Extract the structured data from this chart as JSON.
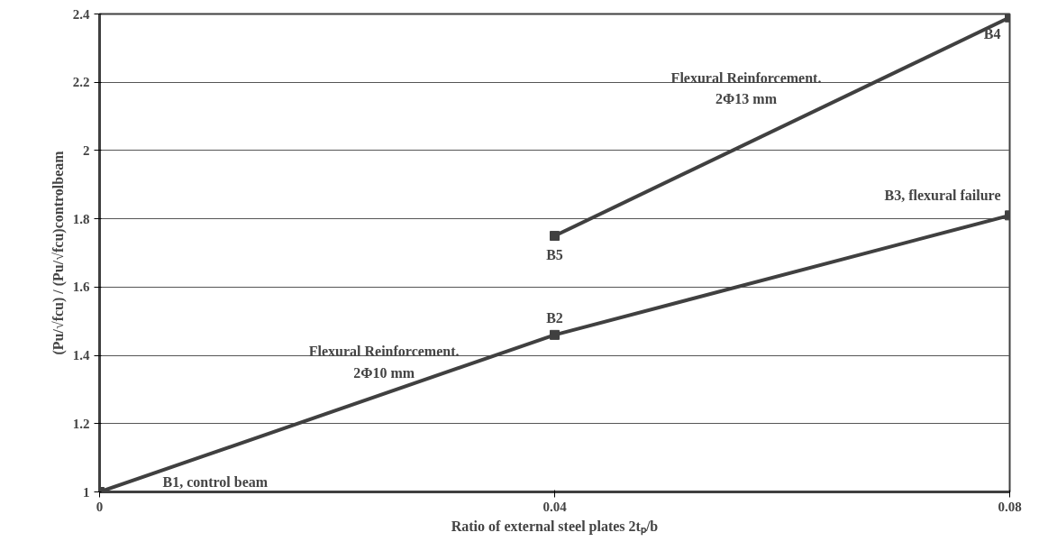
{
  "chart_data": {
    "type": "line",
    "xlabel": "Ratio of external steel plates 2tₚ/b",
    "ylabel": "(Pu/√fcu) / (Pu/√fcu)controlbeam",
    "series": [
      {
        "color": "#404040",
        "x": [
          0,
          0.04,
          0.08
        ],
        "values": [
          1,
          1.46,
          1.81
        ]
      },
      {
        "color": "#404040",
        "x": [
          0.04,
          0.08
        ],
        "values": [
          1.75,
          2.39
        ]
      }
    ],
    "xlim": [
      0,
      0.08
    ],
    "xticks": [
      0,
      0.04,
      0.08
    ],
    "ylim": [
      1,
      2.4
    ],
    "yticks": [
      1,
      1.2,
      1.4,
      1.6,
      1.8,
      2,
      2.2,
      2.4
    ],
    "grid": "y",
    "marker": "square",
    "line_style": "solid",
    "annotations": [
      "B1, control beam",
      {
        "text": "B2",
        "x": 0.04,
        "y": 1.46
      },
      {
        "text": "B3, flexural failure",
        "x": 0.08,
        "y": 1.81
      },
      {
        "text": "B4",
        "x": 0.08,
        "y": 2.39
      },
      {
        "text": "B5",
        "x": 0.04,
        "y": 1.75
      },
      {
        "text": "Flexural Reinforcement.\n2Φ10 mm",
        "x": 0.025,
        "y": 1.29
      },
      {
        "text": "Flexural Reinforcement.\n2Φ13 mm",
        "x": 0.06,
        "y": 2.07
      }
    ]
  }
}
